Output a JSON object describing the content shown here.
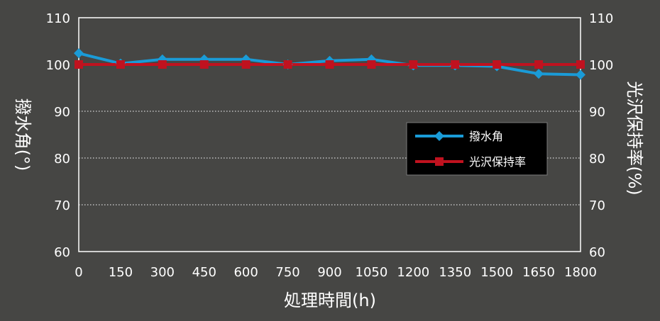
{
  "chart_data": {
    "type": "line",
    "xlabel": "処理時間(h)",
    "ylabel_left": "撥水角(°)",
    "ylabel_right": "光沢保持率(%)",
    "x": [
      0,
      150,
      300,
      450,
      600,
      750,
      900,
      1050,
      1200,
      1350,
      1500,
      1650,
      1800
    ],
    "x_tick_labels": [
      "0",
      "150",
      "300",
      "450",
      "600",
      "750",
      "900",
      "1050",
      "1200",
      "1350",
      "1500",
      "1650",
      "1800"
    ],
    "ylim_left": [
      60,
      110
    ],
    "ylim_right": [
      60,
      110
    ],
    "y_ticks_left": [
      "60",
      "70",
      "80",
      "90",
      "100",
      "110"
    ],
    "y_ticks_right": [
      "60",
      "70",
      "80",
      "90",
      "100",
      "110"
    ],
    "grid": "dotted horizontal at 70, 80, 90; solid at 100",
    "legend_placement": "right",
    "series": [
      {
        "name": "撥水角",
        "axis": "left",
        "marker": "diamond",
        "color": "#1a9bd7",
        "values": [
          102.4,
          100.2,
          101.1,
          101.1,
          101.1,
          100.0,
          100.8,
          101.1,
          99.8,
          99.8,
          99.6,
          98.0,
          97.8
        ]
      },
      {
        "name": "光沢保持率",
        "axis": "right",
        "marker": "square",
        "color": "#c0121f",
        "values": [
          100,
          100,
          100,
          100,
          100,
          100,
          100,
          100,
          100,
          100,
          100,
          100,
          100
        ]
      }
    ]
  }
}
